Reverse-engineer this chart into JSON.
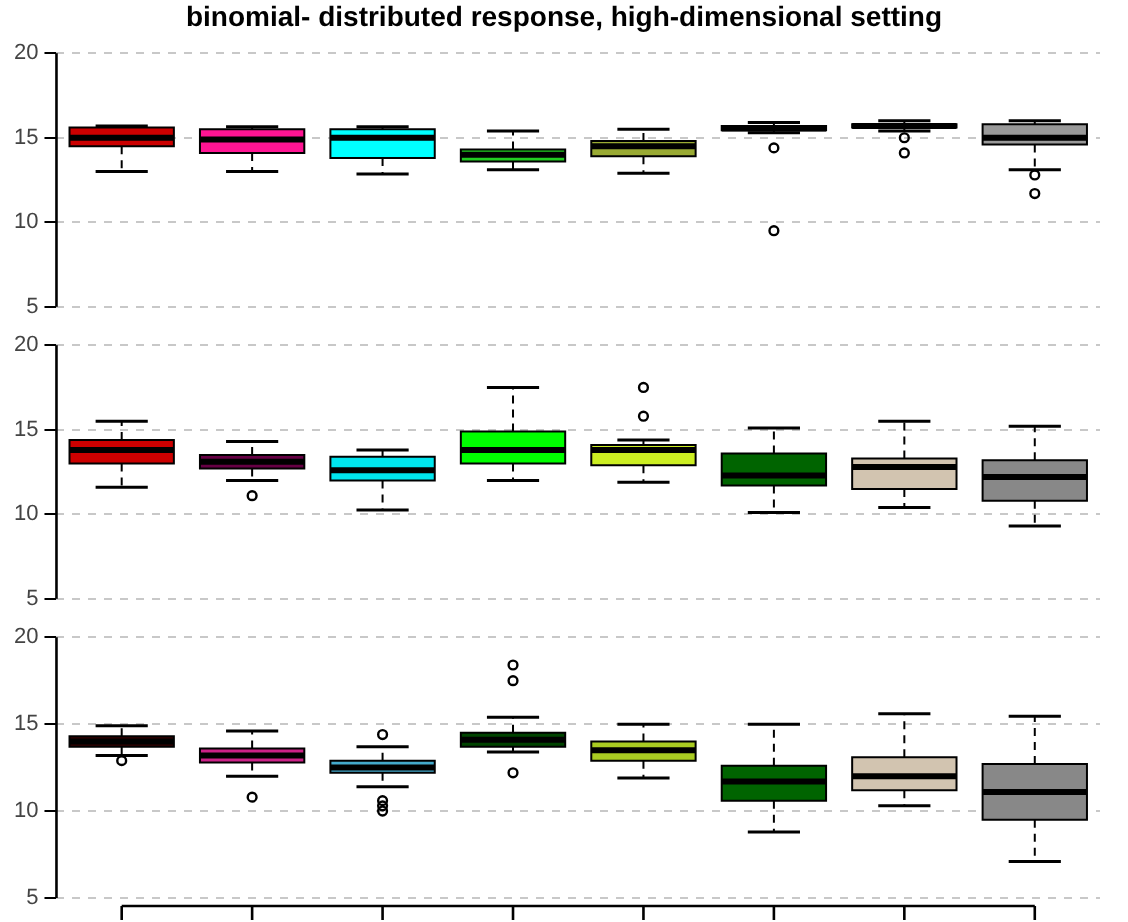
{
  "chart_data": [
    {
      "type": "box",
      "title": "binomial- distributed response, high-dimensional setting",
      "categories": [
        null,
        null,
        null,
        null,
        null,
        null,
        null,
        null
      ],
      "colors": [
        "#cc0000",
        "#ff1493",
        "#00ffff",
        "#22cc22",
        "#99aa33",
        "#111111",
        "#111111",
        "#999999"
      ],
      "ylim": [
        5,
        20
      ],
      "yticks": [
        5,
        10,
        15,
        20
      ],
      "grid": "y",
      "tick_labels": "y",
      "boxes": [
        {
          "low": 13.0,
          "q1": 14.5,
          "median": 15.0,
          "q3": 15.6,
          "high": 15.7
        },
        {
          "low": 13.0,
          "q1": 14.1,
          "median": 14.9,
          "q3": 15.5,
          "high": 15.65
        },
        {
          "low": 12.85,
          "q1": 13.8,
          "median": 15.0,
          "q3": 15.5,
          "high": 15.65
        },
        {
          "low": 13.1,
          "q1": 13.6,
          "median": 14.0,
          "q3": 14.3,
          "high": 15.4
        },
        {
          "low": 12.9,
          "q1": 13.9,
          "median": 14.5,
          "q3": 14.8,
          "high": 15.5
        },
        {
          "low": 15.3,
          "q1": 15.45,
          "median": 15.55,
          "q3": 15.7,
          "high": 15.9,
          "outliers": [
            14.4,
            9.5
          ]
        },
        {
          "low": 15.4,
          "q1": 15.6,
          "median": 15.7,
          "q3": 15.8,
          "high": 16.0,
          "outliers": [
            15.0,
            14.1
          ]
        },
        {
          "low": 13.1,
          "q1": 14.6,
          "median": 15.0,
          "q3": 15.8,
          "high": 16.0,
          "outliers": [
            12.8,
            11.7
          ]
        }
      ]
    },
    {
      "type": "box",
      "categories": [
        null,
        null,
        null,
        null,
        null,
        null,
        null,
        null
      ],
      "colors": [
        "#cc0000",
        "#660044",
        "#00e5ee",
        "#00ff00",
        "#ccee22",
        "#006400",
        "#d2c4b0",
        "#888888"
      ],
      "ylim": [
        5,
        20
      ],
      "yticks": [
        5,
        10,
        15,
        20
      ],
      "grid": "y",
      "tick_labels": "y",
      "boxes": [
        {
          "low": 11.6,
          "q1": 13.0,
          "median": 13.8,
          "q3": 14.4,
          "high": 15.5
        },
        {
          "low": 12.0,
          "q1": 12.7,
          "median": 13.1,
          "q3": 13.5,
          "high": 14.3,
          "outliers": [
            11.1
          ]
        },
        {
          "low": 10.25,
          "q1": 12.0,
          "median": 12.6,
          "q3": 13.4,
          "high": 13.8
        },
        {
          "low": 12.0,
          "q1": 13.0,
          "median": 13.8,
          "q3": 14.9,
          "high": 17.5
        },
        {
          "low": 11.9,
          "q1": 12.9,
          "median": 13.8,
          "q3": 14.1,
          "high": 14.4,
          "outliers": [
            15.8,
            17.5
          ]
        },
        {
          "low": 10.1,
          "q1": 11.7,
          "median": 12.3,
          "q3": 13.6,
          "high": 15.1
        },
        {
          "low": 10.4,
          "q1": 11.5,
          "median": 12.8,
          "q3": 13.3,
          "high": 15.5
        },
        {
          "low": 9.3,
          "q1": 10.8,
          "median": 12.2,
          "q3": 13.2,
          "high": 15.2
        }
      ]
    },
    {
      "type": "box",
      "categories": [
        null,
        null,
        null,
        null,
        null,
        null,
        null,
        null
      ],
      "colors": [
        "#330000",
        "#cc2288",
        "#44aacc",
        "#004400",
        "#aacc22",
        "#006400",
        "#d2c4b0",
        "#888888"
      ],
      "ylim": [
        5,
        20
      ],
      "yticks": [
        5,
        10,
        15,
        20
      ],
      "grid": "y",
      "tick_labels": "y",
      "boxes": [
        {
          "low": 13.2,
          "q1": 13.7,
          "median": 14.0,
          "q3": 14.3,
          "high": 14.9,
          "outliers": [
            12.9
          ]
        },
        {
          "low": 12.0,
          "q1": 12.8,
          "median": 13.2,
          "q3": 13.6,
          "high": 14.6,
          "outliers": [
            10.8
          ]
        },
        {
          "low": 11.4,
          "q1": 12.2,
          "median": 12.5,
          "q3": 12.9,
          "high": 13.7,
          "outliers": [
            14.4,
            10.6,
            10.3,
            10.0
          ]
        },
        {
          "low": 13.4,
          "q1": 13.7,
          "median": 14.1,
          "q3": 14.5,
          "high": 15.4,
          "outliers": [
            18.4,
            17.5,
            12.2
          ]
        },
        {
          "low": 11.9,
          "q1": 12.9,
          "median": 13.5,
          "q3": 14.0,
          "high": 15.0
        },
        {
          "low": 8.8,
          "q1": 10.6,
          "median": 11.7,
          "q3": 12.6,
          "high": 15.0
        },
        {
          "low": 10.3,
          "q1": 11.2,
          "median": 12.0,
          "q3": 13.1,
          "high": 15.6
        },
        {
          "low": 7.1,
          "q1": 9.5,
          "median": 11.1,
          "q3": 12.7,
          "high": 15.45
        }
      ]
    }
  ]
}
